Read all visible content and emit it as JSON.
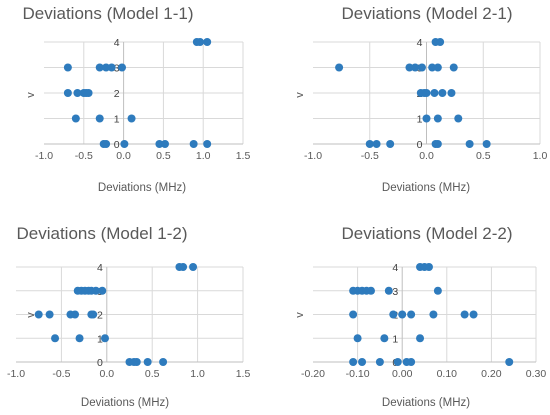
{
  "chart_data": [
    {
      "type": "scatter",
      "title": "Deviations (Model 1-1)",
      "xlabel": "Deviations (MHz)",
      "ylabel": "v",
      "xlim": [
        -1.0,
        1.5
      ],
      "ylim": [
        0,
        4
      ],
      "xticks": [
        "-1.0",
        "-0.5",
        "0.0",
        "0.5",
        "1.0",
        "1.5"
      ],
      "xtick_values": [
        -1.0,
        -0.5,
        0.0,
        0.5,
        1.0,
        1.5
      ],
      "yticks": [
        "0",
        "1",
        "2",
        "3",
        "4"
      ],
      "ytick_values": [
        0,
        1,
        2,
        3,
        4
      ],
      "grid": true,
      "points": [
        {
          "x": -0.25,
          "y": 0
        },
        {
          "x": -0.22,
          "y": 0
        },
        {
          "x": 0.01,
          "y": 0
        },
        {
          "x": 0.45,
          "y": 0
        },
        {
          "x": 0.52,
          "y": 0
        },
        {
          "x": 0.88,
          "y": 0
        },
        {
          "x": 1.05,
          "y": 0
        },
        {
          "x": -0.6,
          "y": 1
        },
        {
          "x": -0.3,
          "y": 1
        },
        {
          "x": 0.1,
          "y": 1
        },
        {
          "x": -0.7,
          "y": 2
        },
        {
          "x": -0.58,
          "y": 2
        },
        {
          "x": -0.5,
          "y": 2
        },
        {
          "x": -0.47,
          "y": 2
        },
        {
          "x": -0.44,
          "y": 2
        },
        {
          "x": -0.7,
          "y": 3
        },
        {
          "x": -0.3,
          "y": 3
        },
        {
          "x": -0.22,
          "y": 3
        },
        {
          "x": -0.15,
          "y": 3
        },
        {
          "x": -0.02,
          "y": 3
        },
        {
          "x": 0.92,
          "y": 4
        },
        {
          "x": 0.96,
          "y": 4
        },
        {
          "x": 1.05,
          "y": 4
        }
      ]
    },
    {
      "type": "scatter",
      "title": "Deviations (Model 2-1)",
      "xlabel": "Deviations (MHz)",
      "ylabel": "v",
      "xlim": [
        -1.0,
        1.0
      ],
      "ylim": [
        0,
        4
      ],
      "xticks": [
        "-1.0",
        "-0.5",
        "0.0",
        "0.5",
        "1.0"
      ],
      "xtick_values": [
        -1.0,
        -0.5,
        0.0,
        0.5,
        1.0
      ],
      "yticks": [
        "0",
        "1",
        "2",
        "3",
        "4"
      ],
      "ytick_values": [
        0,
        1,
        2,
        3,
        4
      ],
      "grid": true,
      "points": [
        {
          "x": -0.5,
          "y": 0
        },
        {
          "x": -0.44,
          "y": 0
        },
        {
          "x": -0.32,
          "y": 0
        },
        {
          "x": 0.08,
          "y": 0
        },
        {
          "x": 0.1,
          "y": 0
        },
        {
          "x": 0.38,
          "y": 0
        },
        {
          "x": 0.53,
          "y": 0
        },
        {
          "x": 0.0,
          "y": 1
        },
        {
          "x": 0.1,
          "y": 1
        },
        {
          "x": 0.28,
          "y": 1
        },
        {
          "x": -0.05,
          "y": 2
        },
        {
          "x": -0.02,
          "y": 2
        },
        {
          "x": 0.0,
          "y": 2
        },
        {
          "x": 0.07,
          "y": 2
        },
        {
          "x": 0.14,
          "y": 2
        },
        {
          "x": 0.22,
          "y": 2
        },
        {
          "x": -0.77,
          "y": 3
        },
        {
          "x": -0.15,
          "y": 3
        },
        {
          "x": -0.1,
          "y": 3
        },
        {
          "x": -0.04,
          "y": 3
        },
        {
          "x": 0.05,
          "y": 3
        },
        {
          "x": 0.1,
          "y": 3
        },
        {
          "x": 0.24,
          "y": 3
        },
        {
          "x": 0.08,
          "y": 4
        },
        {
          "x": 0.12,
          "y": 4
        }
      ]
    },
    {
      "type": "scatter",
      "title": "Deviations (Model 1-2)",
      "xlabel": "Deviations (MHz)",
      "ylabel": "v",
      "xlim": [
        -1.0,
        1.5
      ],
      "ylim": [
        0,
        4
      ],
      "xticks": [
        "-1.0",
        "-0.5",
        "0.0",
        "0.5",
        "1.0",
        "1.5"
      ],
      "xtick_values": [
        -1.0,
        -0.5,
        0.0,
        0.5,
        1.0,
        1.5
      ],
      "yticks": [
        "0",
        "1",
        "2",
        "3",
        "4"
      ],
      "ytick_values": [
        0,
        1,
        2,
        3,
        4
      ],
      "grid": true,
      "points": [
        {
          "x": 0.25,
          "y": 0
        },
        {
          "x": 0.3,
          "y": 0
        },
        {
          "x": 0.33,
          "y": 0
        },
        {
          "x": 0.45,
          "y": 0
        },
        {
          "x": 0.62,
          "y": 0
        },
        {
          "x": -0.57,
          "y": 1
        },
        {
          "x": -0.3,
          "y": 1
        },
        {
          "x": -0.02,
          "y": 1
        },
        {
          "x": -0.75,
          "y": 2
        },
        {
          "x": -0.63,
          "y": 2
        },
        {
          "x": -0.4,
          "y": 2
        },
        {
          "x": -0.35,
          "y": 2
        },
        {
          "x": -0.17,
          "y": 2
        },
        {
          "x": -0.15,
          "y": 2
        },
        {
          "x": -0.32,
          "y": 3
        },
        {
          "x": -0.28,
          "y": 3
        },
        {
          "x": -0.24,
          "y": 3
        },
        {
          "x": -0.2,
          "y": 3
        },
        {
          "x": -0.17,
          "y": 3
        },
        {
          "x": -0.12,
          "y": 3
        },
        {
          "x": -0.05,
          "y": 3
        },
        {
          "x": 0.8,
          "y": 4
        },
        {
          "x": 0.84,
          "y": 4
        },
        {
          "x": 0.95,
          "y": 4
        }
      ]
    },
    {
      "type": "scatter",
      "title": "Deviations (Model 2-2)",
      "xlabel": "Deviations (MHz)",
      "ylabel": "v",
      "xlim": [
        -0.2,
        0.3
      ],
      "ylim": [
        0,
        4
      ],
      "xticks": [
        "-0.20",
        "-0.10",
        "0.00",
        "0.10",
        "0.20",
        "0.30"
      ],
      "xtick_values": [
        -0.2,
        -0.1,
        0.0,
        0.1,
        0.2,
        0.3
      ],
      "yticks": [
        "0",
        "1",
        "2",
        "3",
        "4"
      ],
      "ytick_values": [
        0,
        1,
        2,
        3,
        4
      ],
      "grid": true,
      "points": [
        {
          "x": -0.11,
          "y": 0
        },
        {
          "x": -0.09,
          "y": 0
        },
        {
          "x": -0.05,
          "y": 0
        },
        {
          "x": -0.01,
          "y": 0
        },
        {
          "x": 0.01,
          "y": 0
        },
        {
          "x": 0.02,
          "y": 0
        },
        {
          "x": 0.24,
          "y": 0
        },
        {
          "x": -0.1,
          "y": 1
        },
        {
          "x": -0.04,
          "y": 1
        },
        {
          "x": 0.04,
          "y": 1
        },
        {
          "x": -0.11,
          "y": 2
        },
        {
          "x": -0.02,
          "y": 2
        },
        {
          "x": 0.0,
          "y": 2
        },
        {
          "x": 0.02,
          "y": 2
        },
        {
          "x": 0.07,
          "y": 2
        },
        {
          "x": 0.14,
          "y": 2
        },
        {
          "x": 0.16,
          "y": 2
        },
        {
          "x": -0.11,
          "y": 3
        },
        {
          "x": -0.1,
          "y": 3
        },
        {
          "x": -0.09,
          "y": 3
        },
        {
          "x": -0.08,
          "y": 3
        },
        {
          "x": -0.07,
          "y": 3
        },
        {
          "x": -0.03,
          "y": 3
        },
        {
          "x": 0.08,
          "y": 3
        },
        {
          "x": 0.04,
          "y": 4
        },
        {
          "x": 0.05,
          "y": 4
        },
        {
          "x": 0.06,
          "y": 4
        }
      ]
    }
  ],
  "colors": {
    "marker": "#2e7bbd",
    "text": "#595959",
    "grid": "#d9d9d9",
    "axis": "#bfbfbf"
  }
}
